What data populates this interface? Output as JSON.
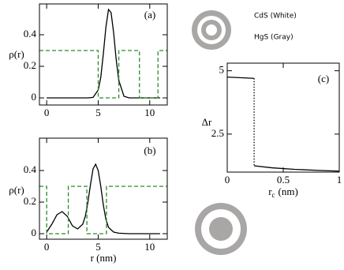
{
  "chart_data": [
    {
      "type": "line",
      "title": "(a)",
      "ylabel": "ρ(r)",
      "xlim": [
        -0.7,
        11.7
      ],
      "xticks": [
        0,
        5,
        10
      ],
      "ylim": [
        -0.045,
        0.595
      ],
      "yticks": [
        0,
        0.2,
        0.4
      ],
      "series": [
        {
          "color": "#000000",
          "style": "solid",
          "x": [
            0,
            3,
            4,
            4.5,
            5,
            5.25,
            5.5,
            5.75,
            6,
            6.25,
            6.5,
            6.75,
            7,
            7.5,
            8,
            9,
            11
          ],
          "values": [
            0,
            0,
            0,
            0.003,
            0.05,
            0.13,
            0.28,
            0.45,
            0.56,
            0.54,
            0.41,
            0.24,
            0.11,
            0.01,
            0,
            0,
            0
          ]
        },
        {
          "color": "#2a8a2a",
          "style": "dashed",
          "x": [
            -0.7,
            5,
            5,
            7,
            7,
            9,
            9,
            10.8,
            10.8,
            11.7
          ],
          "values": [
            0.3,
            0.3,
            0,
            0,
            0.3,
            0.3,
            0,
            0,
            0.3,
            0.3
          ]
        }
      ]
    },
    {
      "type": "line",
      "title": "(b)",
      "ylabel": "ρ(r)",
      "xlabel": "r (nm)",
      "xlim": [
        -0.7,
        11.7
      ],
      "xticks": [
        0,
        5,
        10
      ],
      "ylim": [
        -0.035,
        0.605
      ],
      "yticks": [
        0,
        0.2,
        0.4
      ],
      "series": [
        {
          "color": "#000000",
          "style": "solid",
          "x": [
            0,
            0.5,
            1,
            1.5,
            2,
            2.5,
            3,
            3.5,
            3.75,
            4,
            4.25,
            4.5,
            4.75,
            5,
            5.25,
            5.5,
            5.75,
            6,
            6.5,
            7,
            8,
            11
          ],
          "values": [
            0.01,
            0.06,
            0.12,
            0.14,
            0.11,
            0.05,
            0.03,
            0.06,
            0.11,
            0.2,
            0.31,
            0.41,
            0.44,
            0.4,
            0.3,
            0.18,
            0.09,
            0.04,
            0.01,
            0.003,
            0,
            0
          ]
        },
        {
          "color": "#2a8a2a",
          "style": "dashed",
          "x": [
            -0.7,
            0,
            0,
            2.1,
            2.1,
            3.9,
            3.9,
            5.8,
            5.8,
            11.7
          ],
          "values": [
            0.3,
            0.3,
            0,
            0,
            0.3,
            0.3,
            0,
            0,
            0.3,
            0.3
          ]
        }
      ]
    },
    {
      "type": "line",
      "title": "(c)",
      "ylabel": "Δr",
      "xlabel": "r",
      "xlabel_subscript": "c",
      "xlabel_unit": "(nm)",
      "xlim": [
        0,
        1
      ],
      "xticks": [
        0,
        0.5,
        1
      ],
      "ylim": [
        1,
        5.3
      ],
      "yticks": [
        2.5,
        5
      ],
      "series": [
        {
          "color": "#000000",
          "style": "solid",
          "x": [
            0,
            0.24
          ],
          "values": [
            4.75,
            4.7
          ]
        },
        {
          "color": "#000000",
          "style": "dotted",
          "x": [
            0.24,
            0.24
          ],
          "values": [
            4.7,
            1.25
          ]
        },
        {
          "color": "#000000",
          "style": "solid",
          "x": [
            0.24,
            0.4,
            0.6,
            0.8,
            1
          ],
          "values": [
            1.25,
            1.17,
            1.11,
            1.07,
            1.04
          ]
        }
      ]
    }
  ],
  "legend_texts": [
    "CdS (White)",
    "HgS (Gray)"
  ]
}
